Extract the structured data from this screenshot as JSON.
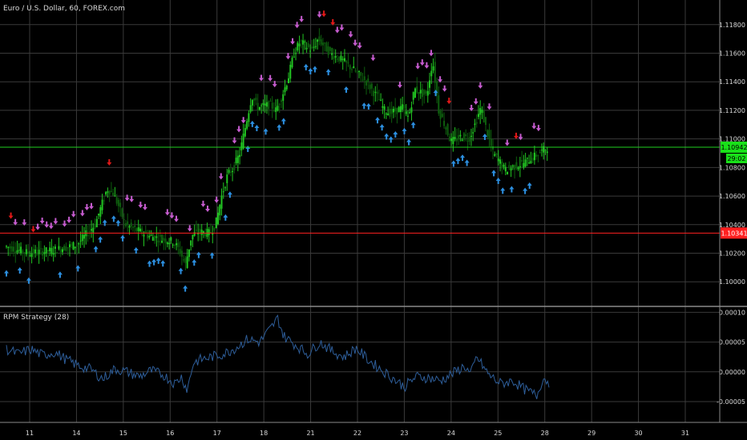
{
  "header": {
    "symbol_title": "Euro / U.S. Dollar, 60, FOREX.com",
    "indicator_title": "RPM Strategy (28)"
  },
  "colors": {
    "background": "#000000",
    "grid": "#3a3a3a",
    "up_candle": "#22c722",
    "down_candle": "#0e5e0e",
    "buy_arrow": "#2c8fe0",
    "sell_arrow_pink": "#c65ccf",
    "sell_arrow_red": "#e01818",
    "indicator_line": "#2e5e9a",
    "price_line": "#1fd11f",
    "red_line": "#ff2020",
    "axis_text": "#d9d9d9"
  },
  "chart_data": {
    "type": "candlestick",
    "grid": true,
    "x_ticks": [
      "11",
      "14",
      "15",
      "16",
      "17",
      "18",
      "21",
      "22",
      "23",
      "24",
      "25",
      "28",
      "29",
      "30",
      "31"
    ],
    "price_axis": {
      "ticks": [
        "1.11800",
        "1.11600",
        "1.11400",
        "1.11200",
        "1.11000",
        "1.10800",
        "1.10600",
        "1.10400",
        "1.10200",
        "1.10000"
      ],
      "ylim": [
        1.0985,
        1.1195
      ]
    },
    "price_line": {
      "value": 1.10942,
      "label": "1.10942",
      "sub_label": "29:02"
    },
    "red_line": {
      "value": 1.10341,
      "label": "1.10341"
    },
    "price_path": [
      [
        0,
        1.1025
      ],
      [
        2,
        1.102
      ],
      [
        4,
        1.1022
      ],
      [
        6,
        1.1026
      ],
      [
        7.5,
        1.104
      ],
      [
        8.5,
        1.1065
      ],
      [
        9,
        1.1062
      ],
      [
        9.5,
        1.1052
      ],
      [
        10,
        1.104
      ],
      [
        11,
        1.1036
      ],
      [
        12,
        1.1032
      ],
      [
        13,
        1.103
      ],
      [
        14,
        1.1028
      ],
      [
        14.5,
        1.1022
      ],
      [
        15,
        1.1012
      ],
      [
        15.5,
        1.1032
      ],
      [
        16,
        1.1035
      ],
      [
        17,
        1.1034
      ],
      [
        17.5,
        1.104
      ],
      [
        18,
        1.106
      ],
      [
        18.5,
        1.1075
      ],
      [
        19,
        1.108
      ],
      [
        19.5,
        1.109
      ],
      [
        20,
        1.111
      ],
      [
        20.5,
        1.113
      ],
      [
        21,
        1.1122
      ],
      [
        22,
        1.1124
      ],
      [
        22.5,
        1.112
      ],
      [
        23,
        1.113
      ],
      [
        23.5,
        1.1142
      ],
      [
        24,
        1.116
      ],
      [
        24.5,
        1.1168
      ],
      [
        25,
        1.1165
      ],
      [
        25.5,
        1.1162
      ],
      [
        26,
        1.117
      ],
      [
        27,
        1.116
      ],
      [
        28,
        1.1155
      ],
      [
        29,
        1.1148
      ],
      [
        30,
        1.114
      ],
      [
        31,
        1.1128
      ],
      [
        31.5,
        1.112
      ],
      [
        32,
        1.1118
      ],
      [
        33,
        1.1122
      ],
      [
        33.5,
        1.1115
      ],
      [
        34,
        1.1135
      ],
      [
        35,
        1.113
      ],
      [
        35.5,
        1.1155
      ],
      [
        36,
        1.112
      ],
      [
        36.5,
        1.111
      ],
      [
        37,
        1.1098
      ],
      [
        38,
        1.1102
      ],
      [
        38.5,
        1.11
      ],
      [
        39,
        1.111
      ],
      [
        39.5,
        1.1122
      ],
      [
        40,
        1.1105
      ],
      [
        40.5,
        1.109
      ],
      [
        41,
        1.1085
      ],
      [
        41.5,
        1.1078
      ],
      [
        42,
        1.108
      ],
      [
        43,
        1.1083
      ],
      [
        44,
        1.1088
      ],
      [
        45,
        1.1094
      ]
    ],
    "indicator": {
      "name": "RPM Strategy (28)",
      "ticks": [
        "0.00010",
        "0.00005",
        "0.00000",
        "-0.00005"
      ],
      "ylim": [
        -8.5e-05,
        0.00011
      ],
      "path": [
        [
          0,
          3.8e-05
        ],
        [
          1,
          3e-05
        ],
        [
          2,
          3.8e-05
        ],
        [
          3,
          2.8e-05
        ],
        [
          4,
          3.3e-05
        ],
        [
          5,
          2e-05
        ],
        [
          6,
          1e-05
        ],
        [
          7,
          4e-06
        ],
        [
          8,
          -1.2e-05
        ],
        [
          9,
          5e-06
        ],
        [
          10,
          0.0
        ],
        [
          11,
          -8e-06
        ],
        [
          12,
          2e-06
        ],
        [
          13,
          -5e-06
        ],
        [
          14,
          -2e-05
        ],
        [
          14.5,
          -8e-06
        ],
        [
          15,
          -3e-05
        ],
        [
          15.5,
          1.5e-05
        ],
        [
          16,
          2e-05
        ],
        [
          17,
          2.5e-05
        ],
        [
          18,
          3e-05
        ],
        [
          19,
          4e-05
        ],
        [
          20,
          5.5e-05
        ],
        [
          21,
          5e-05
        ],
        [
          22,
          7.5e-05
        ],
        [
          22.5,
          9e-05
        ],
        [
          23,
          6e-05
        ],
        [
          24,
          4.5e-05
        ],
        [
          25,
          3e-05
        ],
        [
          26,
          5e-05
        ],
        [
          27,
          3.5e-05
        ],
        [
          28,
          2.5e-05
        ],
        [
          29,
          4e-05
        ],
        [
          30,
          2e-05
        ],
        [
          31,
          5e-06
        ],
        [
          32,
          -1e-05
        ],
        [
          33,
          -2.5e-05
        ],
        [
          34,
          -8e-06
        ],
        [
          35,
          -1e-05
        ],
        [
          36,
          -1.5e-05
        ],
        [
          37,
          -3e-06
        ],
        [
          38,
          1e-05
        ],
        [
          38.5,
          -5e-06
        ],
        [
          39,
          2.5e-05
        ],
        [
          40,
          -5e-06
        ],
        [
          41,
          -2e-05
        ],
        [
          42,
          -1.5e-05
        ],
        [
          43,
          -3e-05
        ],
        [
          44,
          -4e-05
        ],
        [
          44.5,
          -1e-05
        ],
        [
          45,
          -1.8e-05
        ]
      ]
    }
  }
}
